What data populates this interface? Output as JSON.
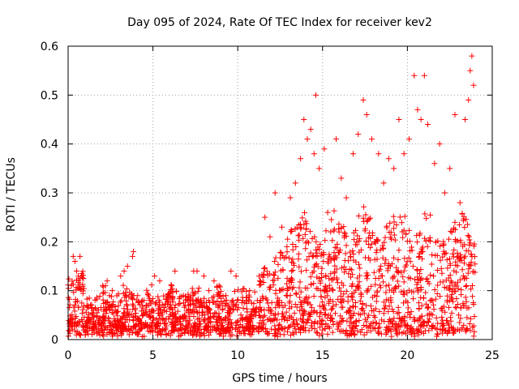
{
  "chart_data": {
    "type": "scatter",
    "title": "Day 095 of 2024, Rate Of TEC Index for receiver kev2",
    "xlabel": "GPS time / hours",
    "ylabel": "ROTI / TECUs",
    "xlim": [
      0,
      25
    ],
    "ylim": [
      0,
      0.6
    ],
    "xticks": [
      0,
      5,
      10,
      15,
      20,
      25
    ],
    "xtick_labels": [
      "0",
      "5",
      "10",
      "15",
      "20",
      "25"
    ],
    "yticks": [
      0,
      0.1,
      0.2,
      0.3,
      0.4,
      0.5,
      0.6
    ],
    "ytick_labels": [
      "0",
      "0.1",
      "0.2",
      "0.3",
      "0.4",
      "0.5",
      "0.6"
    ],
    "grid": true,
    "marker": "+",
    "marker_color": "#ff0000",
    "series": [
      {
        "name": "ROTI",
        "points": [
          [
            0.3,
            0.17
          ],
          [
            0.4,
            0.16
          ],
          [
            0.5,
            0.14
          ],
          [
            0.6,
            0.13
          ],
          [
            0.7,
            0.17
          ],
          [
            1.1,
            0.07
          ],
          [
            1.5,
            0.06
          ],
          [
            2.2,
            0.11
          ],
          [
            2.3,
            0.12
          ],
          [
            2.6,
            0.1
          ],
          [
            3.1,
            0.13
          ],
          [
            3.3,
            0.14
          ],
          [
            3.5,
            0.15
          ],
          [
            3.8,
            0.17
          ],
          [
            3.85,
            0.18
          ],
          [
            4.1,
            0.09
          ],
          [
            4.6,
            0.07
          ],
          [
            5.1,
            0.13
          ],
          [
            5.4,
            0.12
          ],
          [
            6.1,
            0.11
          ],
          [
            6.3,
            0.14
          ],
          [
            6.8,
            0.09
          ],
          [
            7.4,
            0.14
          ],
          [
            7.6,
            0.14
          ],
          [
            8.0,
            0.13
          ],
          [
            8.3,
            0.1
          ],
          [
            8.6,
            0.12
          ],
          [
            8.9,
            0.11
          ],
          [
            9.3,
            0.09
          ],
          [
            9.6,
            0.14
          ],
          [
            9.9,
            0.13
          ],
          [
            10.3,
            0.08
          ],
          [
            10.7,
            0.1
          ],
          [
            11.3,
            0.12
          ],
          [
            11.6,
            0.25
          ],
          [
            11.9,
            0.21
          ],
          [
            12.2,
            0.3
          ],
          [
            12.6,
            0.23
          ],
          [
            12.9,
            0.19
          ],
          [
            13.1,
            0.29
          ],
          [
            13.4,
            0.32
          ],
          [
            13.7,
            0.37
          ],
          [
            13.9,
            0.45
          ],
          [
            14.1,
            0.41
          ],
          [
            14.3,
            0.43
          ],
          [
            14.5,
            0.38
          ],
          [
            14.6,
            0.5
          ],
          [
            14.8,
            0.35
          ],
          [
            15.1,
            0.39
          ],
          [
            15.3,
            0.26
          ],
          [
            15.8,
            0.41
          ],
          [
            16.1,
            0.33
          ],
          [
            16.4,
            0.29
          ],
          [
            16.8,
            0.38
          ],
          [
            17.1,
            0.42
          ],
          [
            17.4,
            0.49
          ],
          [
            17.6,
            0.46
          ],
          [
            17.9,
            0.41
          ],
          [
            18.3,
            0.38
          ],
          [
            18.6,
            0.32
          ],
          [
            18.9,
            0.37
          ],
          [
            19.2,
            0.35
          ],
          [
            19.5,
            0.45
          ],
          [
            19.8,
            0.38
          ],
          [
            20.1,
            0.41
          ],
          [
            20.4,
            0.54
          ],
          [
            20.6,
            0.47
          ],
          [
            20.8,
            0.45
          ],
          [
            21.0,
            0.54
          ],
          [
            21.2,
            0.44
          ],
          [
            21.6,
            0.36
          ],
          [
            21.9,
            0.4
          ],
          [
            22.2,
            0.3
          ],
          [
            22.5,
            0.35
          ],
          [
            22.8,
            0.46
          ],
          [
            23.1,
            0.28
          ],
          [
            23.4,
            0.45
          ],
          [
            23.6,
            0.49
          ],
          [
            23.7,
            0.55
          ],
          [
            23.8,
            0.58
          ],
          [
            23.9,
            0.52
          ]
        ]
      }
    ]
  }
}
